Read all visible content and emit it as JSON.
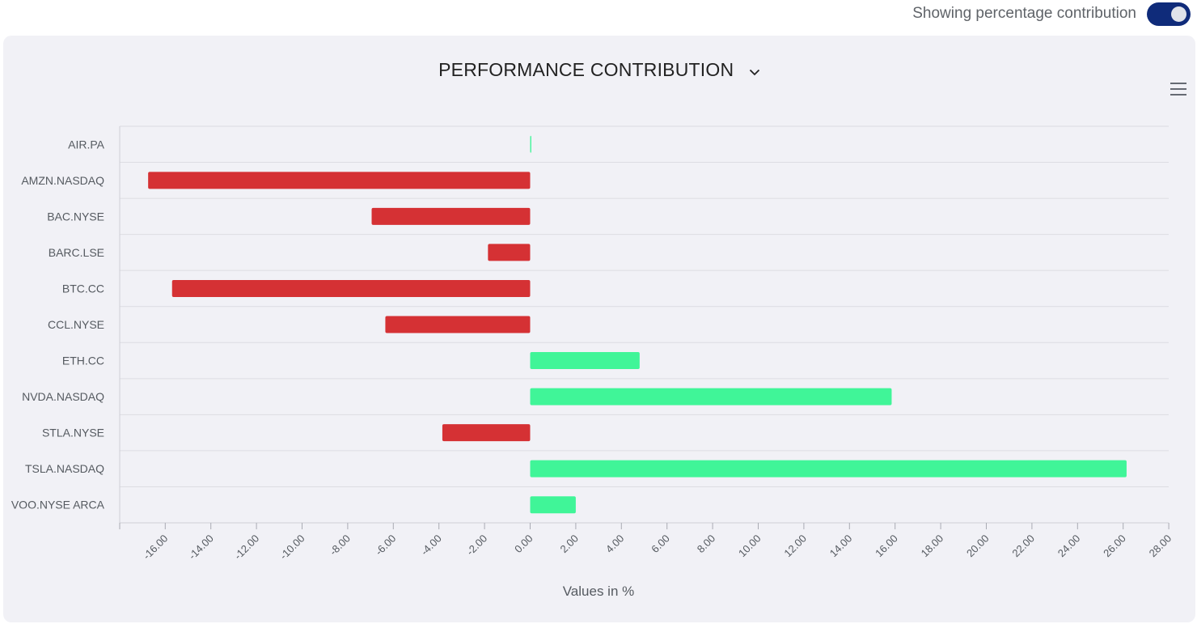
{
  "toggle": {
    "label": "Showing percentage contribution",
    "state": "on"
  },
  "menu_icon": "hamburger-icon",
  "dropdown_icon": "chevron-down-icon",
  "colors": {
    "positive": "#40f598",
    "negative": "#d53134",
    "toggle": "#0f2b7a"
  },
  "chart_data": {
    "type": "bar",
    "orientation": "horizontal",
    "title": "PERFORMANCE CONTRIBUTION",
    "xlabel": "Values in %",
    "ylabel": "",
    "categories": [
      "AIR.PA",
      "AMZN.NASDAQ",
      "BAC.NYSE",
      "BARC.LSE",
      "BTC.CC",
      "CCL.NYSE",
      "ETH.CC",
      "NVDA.NASDAQ",
      "STLA.NYSE",
      "TSLA.NASDAQ",
      "VOO.NYSE ARCA"
    ],
    "values": [
      0.05,
      -16.75,
      -6.95,
      -1.85,
      -15.7,
      -6.35,
      4.8,
      15.85,
      -3.85,
      26.15,
      2.0
    ],
    "xlim": [
      -18,
      28
    ],
    "xticks": [
      "-16.00",
      "-14.00",
      "-12.00",
      "-10.00",
      "-8.00",
      "-6.00",
      "-4.00",
      "-2.00",
      "0.00",
      "2.00",
      "4.00",
      "6.00",
      "8.00",
      "10.00",
      "12.00",
      "14.00",
      "16.00",
      "18.00",
      "20.00",
      "22.00",
      "24.00",
      "26.00",
      "28.00"
    ],
    "grid": true,
    "legend": "none"
  }
}
